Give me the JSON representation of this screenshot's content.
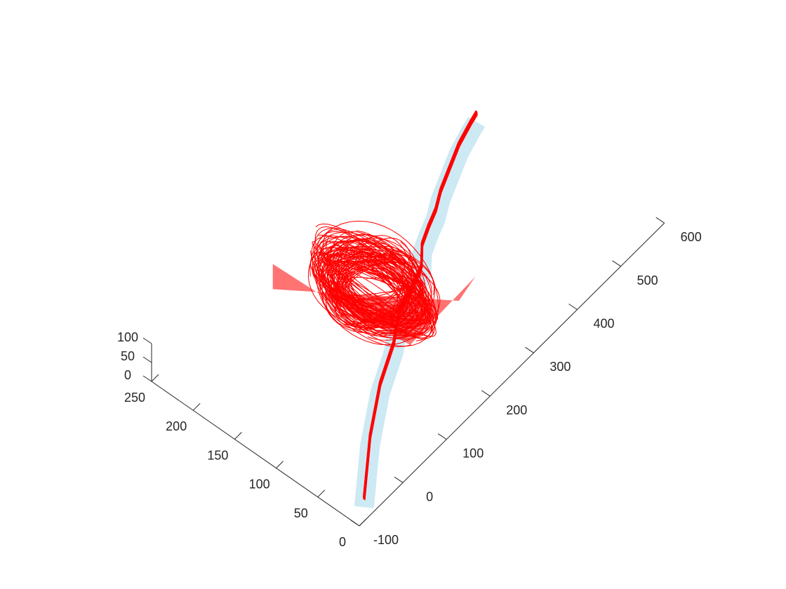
{
  "chart_data": {
    "type": "line",
    "title": "",
    "xlabel": "",
    "ylabel": "",
    "zlabel": "",
    "grid": false,
    "view": "3d",
    "axes": {
      "x": {
        "range": [
          0,
          250
        ],
        "ticks": [
          0,
          50,
          100,
          150,
          200,
          250
        ],
        "tick_labels": [
          "0",
          "50",
          "100",
          "150",
          "200",
          "250"
        ]
      },
      "y": {
        "range": [
          -100,
          600
        ],
        "ticks": [
          -100,
          0,
          100,
          200,
          300,
          400,
          500,
          600
        ],
        "tick_labels": [
          "-100",
          "0",
          "100",
          "200",
          "300",
          "400",
          "500",
          "600"
        ]
      },
      "z": {
        "range": [
          0,
          100
        ],
        "ticks": [
          0,
          50,
          100
        ],
        "tick_labels": [
          "0",
          "50",
          "100"
        ]
      }
    },
    "series": [
      {
        "kind": "band",
        "color": "#cde9f3",
        "centerline": [
          [
            10,
            -70
          ],
          [
            50,
            20
          ],
          [
            80,
            100
          ],
          [
            100,
            170
          ],
          [
            120,
            220
          ],
          [
            125,
            260
          ],
          [
            135,
            300
          ],
          [
            150,
            330
          ],
          [
            158,
            360
          ],
          [
            165,
            390
          ],
          [
            175,
            420
          ],
          [
            185,
            460
          ],
          [
            195,
            500
          ],
          [
            202,
            540
          ],
          [
            205,
            560
          ]
        ],
        "half_width": 13
      },
      {
        "kind": "trajectories",
        "color": "#ff0000",
        "note_count": 40,
        "centerline": [
          [
            10,
            -70
          ],
          [
            50,
            20
          ],
          [
            80,
            100
          ],
          [
            100,
            170
          ],
          [
            120,
            220
          ],
          [
            125,
            260
          ],
          [
            135,
            300
          ],
          [
            150,
            330
          ],
          [
            158,
            360
          ],
          [
            165,
            390
          ],
          [
            175,
            420
          ],
          [
            185,
            460
          ],
          [
            195,
            500
          ],
          [
            202,
            540
          ],
          [
            205,
            560
          ]
        ],
        "vortex_region": {
          "x": [
            70,
            230
          ],
          "y": [
            140,
            300
          ],
          "z": [
            0,
            95
          ]
        }
      }
    ]
  }
}
